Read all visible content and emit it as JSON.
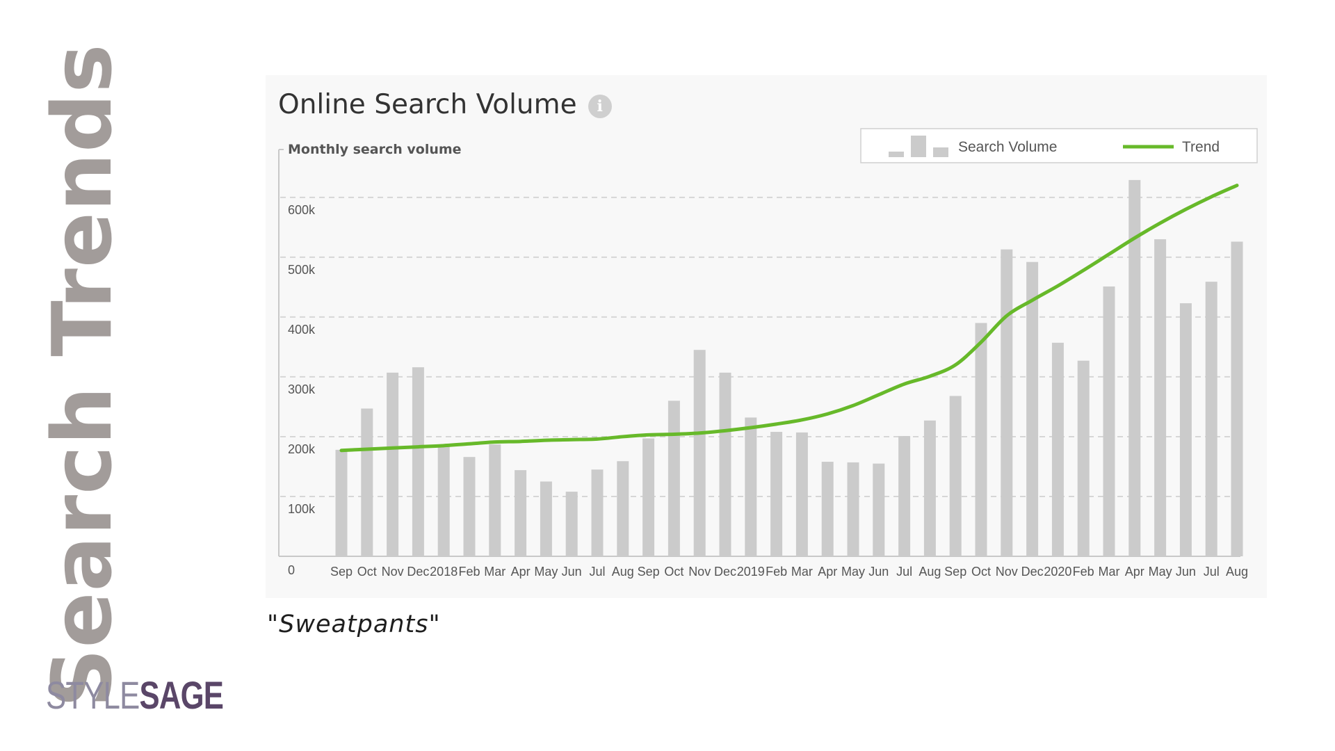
{
  "slide": {
    "side_title": "Search Trends",
    "caption": "\"Sweatpants\"",
    "logo_left": "STYLE",
    "logo_right": "SAGE"
  },
  "card": {
    "title": "Online Search Volume",
    "info_icon": "info-icon"
  },
  "colors": {
    "bar": "#cbcbcb",
    "trend": "#67b92a",
    "grid": "#d6d6d6",
    "axis": "#c8c8c8",
    "text": "#555555",
    "side_title": "#a29c9a",
    "logo_style": "#8e8aa0",
    "logo_sage": "#5a4668"
  },
  "chart_data": {
    "type": "bar",
    "ylabel": "Monthly search volume",
    "ylim": [
      0,
      680000
    ],
    "yticks": [
      0,
      100000,
      200000,
      300000,
      400000,
      500000,
      600000
    ],
    "ytick_labels": [
      "0",
      "100k",
      "200k",
      "300k",
      "400k",
      "500k",
      "600k"
    ],
    "grid": true,
    "legend_position": "top-right",
    "categories": [
      "Sep",
      "Oct",
      "Nov",
      "Dec",
      "2018",
      "Feb",
      "Mar",
      "Apr",
      "May",
      "Jun",
      "Jul",
      "Aug",
      "Sep",
      "Oct",
      "Nov",
      "Dec",
      "2019",
      "Feb",
      "Mar",
      "Apr",
      "May",
      "Jun",
      "Jul",
      "Aug",
      "Sep",
      "Oct",
      "Nov",
      "Dec",
      "2020",
      "Feb",
      "Mar",
      "Apr",
      "May",
      "Jun",
      "Jul",
      "Aug"
    ],
    "series": [
      {
        "name": "Search Volume",
        "type": "bar",
        "values": [
          178000,
          247000,
          307000,
          316000,
          183000,
          166000,
          187000,
          144000,
          125000,
          108000,
          145000,
          159000,
          197000,
          260000,
          345000,
          307000,
          232000,
          208000,
          207000,
          158000,
          157000,
          155000,
          201000,
          227000,
          268000,
          390000,
          513000,
          492000,
          357000,
          327000,
          451000,
          629000,
          530000,
          423000,
          459000,
          526000
        ]
      },
      {
        "name": "Trend",
        "type": "line",
        "values": [
          177000,
          179000,
          181000,
          183000,
          185000,
          188000,
          191000,
          192000,
          194000,
          195000,
          196000,
          200000,
          203000,
          204000,
          206000,
          210000,
          215000,
          221000,
          228000,
          238000,
          252000,
          270000,
          288000,
          301000,
          320000,
          358000,
          402000,
          428000,
          452000,
          478000,
          505000,
          532000,
          557000,
          580000,
          601000,
          620000
        ]
      }
    ]
  }
}
